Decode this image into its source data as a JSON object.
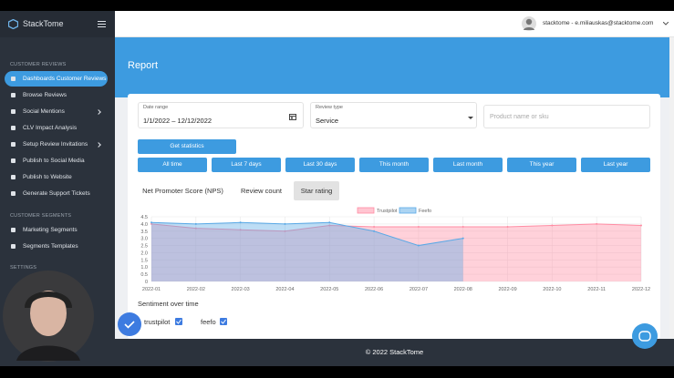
{
  "sidebar": {
    "brand": "StackTome",
    "sections": [
      {
        "title": "CUSTOMER REVIEWS",
        "items": [
          "Dashboards Customer Reviews",
          "Browse Reviews",
          "Social Mentions",
          "CLV Impact Analysis",
          "Setup Review Invitations",
          "Publish to Social Media",
          "Publish to Website",
          "Generate Support Tickets"
        ]
      },
      {
        "title": "CUSTOMER SEGMENTS",
        "items": [
          "Marketing Segments",
          "Segments Templates"
        ]
      },
      {
        "title": "SETTINGS",
        "items": []
      }
    ]
  },
  "header": {
    "user": "stacktome - e.miliauskas@stacktome.com"
  },
  "page": {
    "title": "Report"
  },
  "filters": {
    "date_range_label": "Date range",
    "date_range_value": "1/1/2022 – 12/12/2022",
    "review_type_label": "Review type",
    "review_type_value": "Service",
    "product_placeholder": "Product name or sku",
    "get_statistics": "Get statistics",
    "ranges": [
      "All time",
      "Last 7 days",
      "Last 30 days",
      "This month",
      "Last month",
      "This year",
      "Last year"
    ]
  },
  "tabs": [
    "Net Promoter Score (NPS)",
    "Review count",
    "Star rating"
  ],
  "chart_data": {
    "type": "line",
    "categories": [
      "2022-01",
      "2022-02",
      "2022-03",
      "2022-04",
      "2022-05",
      "2022-06",
      "2022-07",
      "2022-08",
      "2022-09",
      "2022-10",
      "2022-11",
      "2022-12"
    ],
    "series": [
      {
        "name": "Trustpilot",
        "color": "#ff8ca3",
        "values": [
          4.0,
          3.7,
          3.6,
          3.5,
          3.9,
          3.8,
          3.8,
          3.8,
          3.8,
          3.9,
          4.0,
          3.9
        ]
      },
      {
        "name": "Feefo",
        "color": "#5aa9e6",
        "values": [
          4.1,
          4.0,
          4.1,
          4.0,
          4.1,
          3.5,
          2.5,
          3.0,
          null,
          null,
          null,
          null
        ]
      }
    ],
    "ylim": [
      0,
      4.5
    ],
    "yticks": [
      0,
      0.5,
      {
        "value": 1,
        "label": "1.0"
      },
      1.5,
      {
        "value": 2,
        "label": "2.0"
      },
      2.5,
      {
        "value": 3,
        "label": "3.0"
      },
      3.5,
      {
        "value": 4,
        "label": "4.0"
      },
      4.5
    ],
    "grid": true,
    "legend": "top",
    "fill": true
  },
  "sentiment": {
    "title": "Sentiment over time",
    "sources": [
      "trustpilot",
      "feefo"
    ]
  },
  "footer": "© 2022 StackTome"
}
